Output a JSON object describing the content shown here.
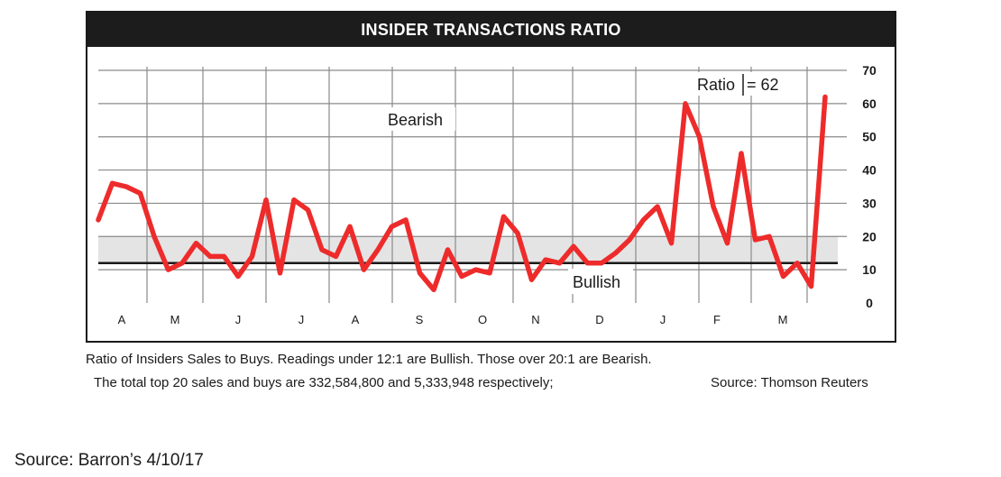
{
  "chart_data": {
    "type": "line",
    "title": "INSIDER TRANSACTIONS RATIO",
    "x_tick_labels": [
      "A",
      "M",
      "J",
      "J",
      "A",
      "S",
      "O",
      "N",
      "D",
      "J",
      "F",
      "M"
    ],
    "y_ticks": [
      0,
      10,
      20,
      30,
      40,
      50,
      60,
      70
    ],
    "ylim": [
      0,
      70
    ],
    "grid": true,
    "bullish_band": [
      12,
      20
    ],
    "reference_line": 12,
    "series": [
      {
        "values": [
          25,
          36,
          35,
          33,
          20,
          10,
          12,
          18,
          14,
          14,
          8,
          14,
          31,
          9,
          31,
          28,
          16,
          14,
          23,
          10,
          16,
          23,
          25,
          9,
          4,
          16,
          8,
          10,
          9,
          26,
          21,
          7,
          13,
          12,
          17,
          12,
          12,
          15,
          19,
          25,
          29,
          18,
          60,
          50,
          29,
          18,
          45,
          19,
          20,
          8,
          12,
          5,
          62
        ],
        "color": "#ee2b2b"
      }
    ],
    "annotations": {
      "bearish": "Bearish",
      "bullish": "Bullish",
      "ratio_label": "Ratio",
      "ratio_value": "= 62"
    }
  },
  "captions": {
    "line1": "Ratio of Insiders Sales to Buys. Readings under 12:1 are Bullish. Those over 20:1 are Bearish.",
    "line2": "The total top 20 sales and buys are 332,584,800 and 5,333,948 respectively;",
    "source": "Source: Thomson Reuters"
  },
  "footer": {
    "source": "Source: Barron’s 4/10/17"
  }
}
